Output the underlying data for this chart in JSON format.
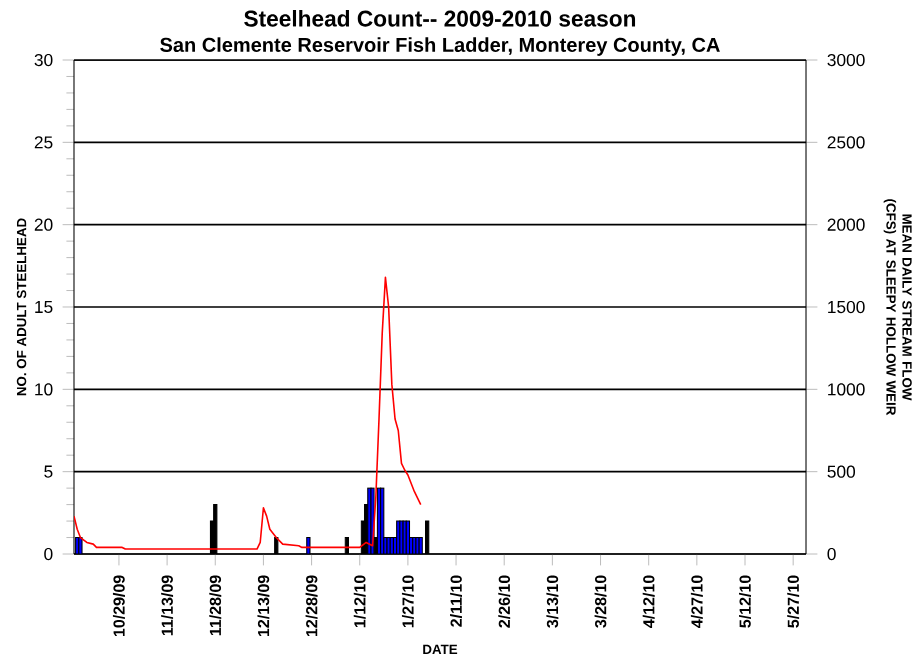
{
  "chart_data": {
    "type": "bar",
    "title": "Steelhead Count-- 2009-2010 season",
    "subtitle": "San Clemente Reservoir Fish Ladder, Monterey County, CA",
    "xlabel": "DATE",
    "ylabel": "NO. OF ADULT STEELHEAD",
    "y2label": "MEAN DAILY STREAM FLOW (CFS) AT SLEEPY HOLLOW WEIR",
    "series": [
      {
        "x": [
          "2009-10-16",
          "2009-10-17",
          "2009-11-27",
          "2009-11-28",
          "2009-12-17",
          "2009-12-27",
          "2010-01-08",
          "2010-01-13",
          "2010-01-14",
          "2010-01-15",
          "2010-01-16",
          "2010-01-17",
          "2010-01-18",
          "2010-01-19",
          "2010-01-20",
          "2010-01-21",
          "2010-01-22",
          "2010-01-23",
          "2010-01-24",
          "2010-01-25",
          "2010-01-26",
          "2010-01-27",
          "2010-01-28",
          "2010-01-29",
          "2010-01-30",
          "2010-01-31",
          "2010-02-02"
        ],
        "values": [
          1,
          1,
          2,
          3,
          1,
          1,
          1,
          2,
          3,
          4,
          4,
          1,
          4,
          4,
          1,
          1,
          1,
          1,
          2,
          2,
          2,
          2,
          1,
          1,
          1,
          1,
          2
        ],
        "colors": [
          "#0000ff",
          "#0000ff",
          "#000000",
          "#000000",
          "#000000",
          "#0000ff",
          "#000000",
          "#000000",
          "#000000",
          "#0000ff",
          "#0000ff",
          "#000000",
          "#0000ff",
          "#0000ff",
          "#0000ff",
          "#0000ff",
          "#0000ff",
          "#0000ff",
          "#0000ff",
          "#0000ff",
          "#0000ff",
          "#0000ff",
          "#0000ff",
          "#0000ff",
          "#0000ff",
          "#0000ff",
          "#000000"
        ]
      },
      {
        "type": "line",
        "axis": "y2",
        "color": "#ff0000",
        "x": [
          "2009-10-15",
          "2009-10-16",
          "2009-10-17",
          "2009-10-19",
          "2009-10-21",
          "2009-10-22",
          "2009-10-30",
          "2009-10-31",
          "2009-12-11",
          "2009-12-12",
          "2009-12-13",
          "2009-12-14",
          "2009-12-15",
          "2009-12-17",
          "2009-12-19",
          "2009-12-24",
          "2009-12-25",
          "2010-01-12",
          "2010-01-14",
          "2010-01-16",
          "2010-01-17",
          "2010-01-18",
          "2010-01-19",
          "2010-01-20",
          "2010-01-21",
          "2010-01-22",
          "2010-01-23",
          "2010-01-24",
          "2010-01-25",
          "2010-01-26",
          "2010-01-27",
          "2010-01-29",
          "2010-01-31"
        ],
        "values": [
          230,
          150,
          100,
          70,
          60,
          40,
          40,
          30,
          30,
          70,
          280,
          230,
          150,
          100,
          60,
          50,
          40,
          40,
          70,
          50,
          340,
          820,
          1340,
          1680,
          1500,
          1030,
          820,
          750,
          550,
          510,
          480,
          380,
          300
        ]
      }
    ],
    "xlim": [
      "2009-10-15",
      "2010-05-31"
    ],
    "xticks": [
      {
        "value": "2009-10-29",
        "label": "10/29/09"
      },
      {
        "value": "2009-11-13",
        "label": "11/13/09"
      },
      {
        "value": "2009-11-28",
        "label": "11/28/09"
      },
      {
        "value": "2009-12-13",
        "label": "12/13/09"
      },
      {
        "value": "2009-12-28",
        "label": "12/28/09"
      },
      {
        "value": "2010-01-12",
        "label": "1/12/10"
      },
      {
        "value": "2010-01-27",
        "label": "1/27/10"
      },
      {
        "value": "2010-02-11",
        "label": "2/11/10"
      },
      {
        "value": "2010-02-26",
        "label": "2/26/10"
      },
      {
        "value": "2010-03-13",
        "label": "3/13/10"
      },
      {
        "value": "2010-03-28",
        "label": "3/28/10"
      },
      {
        "value": "2010-04-12",
        "label": "4/12/10"
      },
      {
        "value": "2010-04-27",
        "label": "4/27/10"
      },
      {
        "value": "2010-05-12",
        "label": "5/12/10"
      },
      {
        "value": "2010-05-27",
        "label": "5/27/10"
      }
    ],
    "ylim": [
      0,
      30
    ],
    "yticks": [
      0,
      5,
      10,
      15,
      20,
      25,
      30
    ],
    "y2lim": [
      0,
      3000
    ],
    "y2ticks": [
      0,
      500,
      1000,
      1500,
      2000,
      2500,
      3000
    ],
    "grid": "y"
  }
}
